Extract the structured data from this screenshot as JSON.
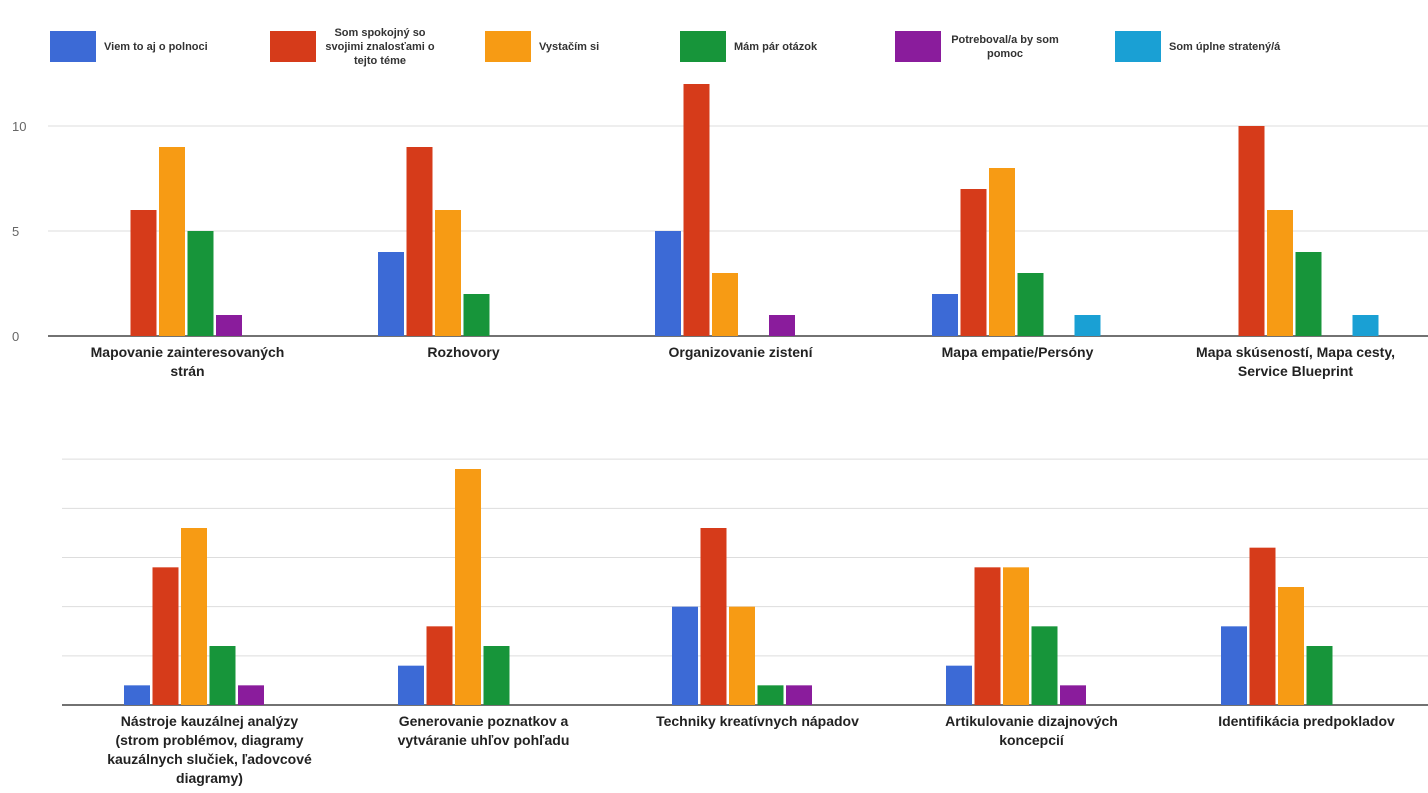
{
  "chart_data": [
    {
      "type": "bar",
      "categories": [
        [
          "Mapovanie zainteresovaných",
          "strán"
        ],
        [
          "Rozhovory"
        ],
        [
          "Organizovanie zistení"
        ],
        [
          "Mapa empatie/Persóny"
        ],
        [
          "Mapa skúseností, Mapa cesty,",
          "Service Blueprint"
        ]
      ],
      "yticks": [
        "0",
        "5",
        "10"
      ],
      "ylim": [
        0,
        12
      ],
      "grid": true,
      "series": [
        {
          "name": [
            "Viem to aj o polnoci"
          ],
          "color": "#3c6ad6",
          "values": [
            0,
            4,
            5,
            2,
            0
          ]
        },
        {
          "name": [
            "Som spokojný so",
            "svojimi znalosťami o",
            "tejto téme"
          ],
          "color": "#d63b1a",
          "values": [
            6,
            9,
            12,
            7,
            10
          ]
        },
        {
          "name": [
            "Vystačím si"
          ],
          "color": "#f79b14",
          "values": [
            9,
            6,
            3,
            8,
            6
          ]
        },
        {
          "name": [
            "Mám pár otázok"
          ],
          "color": "#17953a",
          "values": [
            5,
            2,
            0,
            3,
            4
          ]
        },
        {
          "name": [
            "Potreboval/a by som",
            "pomoc"
          ],
          "color": "#8a1c9c",
          "values": [
            1,
            0,
            1,
            0,
            0
          ]
        },
        {
          "name": [
            "Som úplne stratený/á"
          ],
          "color": "#1aa0d4",
          "values": [
            0,
            0,
            0,
            1,
            1
          ]
        }
      ]
    },
    {
      "type": "bar",
      "categories": [
        [
          "Nástroje kauzálnej analýzy",
          "(strom problémov, diagramy",
          "kauzálnych slučiek, ľadovcové",
          "diagramy)"
        ],
        [
          "Generovanie poznatkov a",
          "vytváranie uhľov pohľadu"
        ],
        [
          "Techniky kreatívnych nápadov"
        ],
        [
          "Artikulovanie dizajnových",
          "koncepcií"
        ],
        [
          "Identifikácia predpokladov"
        ]
      ],
      "ylim": [
        0,
        12
      ],
      "grid": true,
      "series": [
        {
          "color": "#3c6ad6",
          "values": [
            1,
            2,
            5,
            2,
            4
          ]
        },
        {
          "color": "#d63b1a",
          "values": [
            7,
            4,
            9,
            7,
            8
          ]
        },
        {
          "color": "#f79b14",
          "values": [
            9,
            12,
            5,
            7,
            6
          ]
        },
        {
          "color": "#17953a",
          "values": [
            3,
            3,
            1,
            4,
            3
          ]
        },
        {
          "color": "#8a1c9c",
          "values": [
            1,
            0,
            1,
            1,
            0
          ]
        },
        {
          "color": "#1aa0d4",
          "values": [
            0,
            0,
            0,
            0,
            0
          ]
        }
      ]
    }
  ]
}
